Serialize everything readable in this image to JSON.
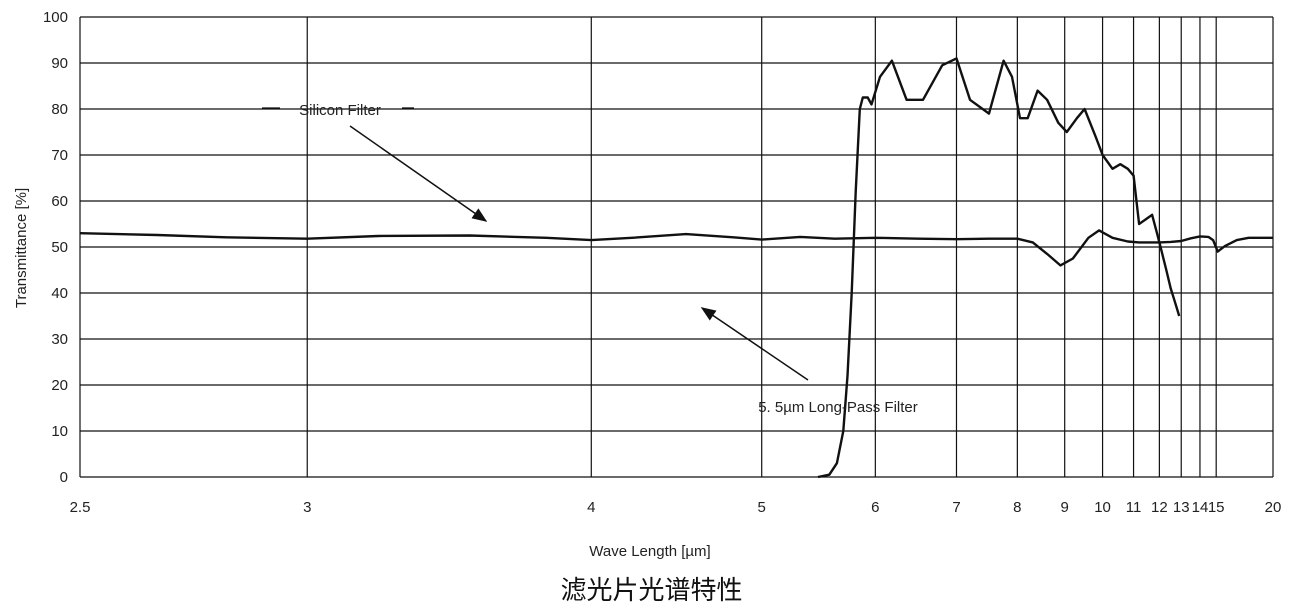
{
  "chart_data": {
    "type": "line",
    "title": "",
    "xlabel": "Wave Length [µm]",
    "ylabel": "Transmittance [%]",
    "xscale": "reciprocal",
    "xlim": [
      2.5,
      20
    ],
    "ylim": [
      0,
      100
    ],
    "grid": true,
    "x_ticks": [
      2.5,
      3,
      4,
      5,
      6,
      7,
      8,
      9,
      10,
      11,
      12,
      13,
      14,
      15,
      20
    ],
    "x_tick_labels": [
      "2.5",
      "3",
      "4",
      "5",
      "6",
      "7",
      "8",
      "9",
      "10",
      "11",
      "12",
      "13",
      "14",
      "15",
      "20"
    ],
    "y_ticks": [
      0,
      10,
      20,
      30,
      40,
      50,
      60,
      70,
      80,
      90,
      100
    ],
    "y_tick_labels": [
      "0",
      "10",
      "20",
      "30",
      "40",
      "50",
      "60",
      "70",
      "80",
      "90",
      "100"
    ],
    "series": [
      {
        "name": "Silicon Filter",
        "x": [
          2.5,
          2.65,
          2.8,
          3.0,
          3.2,
          3.5,
          3.8,
          4.0,
          4.2,
          4.5,
          4.8,
          5.0,
          5.3,
          5.6,
          6.0,
          6.5,
          7.0,
          7.5,
          8.0,
          8.3,
          8.6,
          8.9,
          9.2,
          9.6,
          9.9,
          10.3,
          10.8,
          11.2,
          11.6,
          12.0,
          12.5,
          13.0,
          13.5,
          14.0,
          14.5,
          14.8,
          15.1,
          15.6,
          16.5,
          17.5,
          18.5,
          20.0
        ],
        "y": [
          53,
          52.6,
          52.1,
          51.8,
          52.4,
          52.5,
          52.0,
          51.5,
          52.0,
          52.8,
          52.1,
          51.6,
          52.2,
          51.8,
          52.0,
          51.8,
          51.7,
          51.8,
          51.8,
          51.0,
          48.5,
          46.0,
          47.5,
          52.0,
          53.6,
          52.0,
          51.2,
          51.0,
          51.0,
          51.0,
          51.1,
          51.3,
          51.9,
          52.3,
          52.2,
          51.5,
          49.0,
          50.2,
          51.5,
          52.0,
          52.0,
          52.0
        ]
      },
      {
        "name": "5. 5µm Long-Pass Filter",
        "x": [
          5.45,
          5.55,
          5.62,
          5.68,
          5.72,
          5.76,
          5.8,
          5.84,
          5.87,
          5.92,
          5.96,
          6.05,
          6.18,
          6.35,
          6.55,
          6.8,
          7.0,
          7.2,
          7.5,
          7.75,
          7.9,
          8.05,
          8.2,
          8.4,
          8.6,
          8.85,
          9.05,
          9.3,
          9.5,
          9.8,
          10.0,
          10.3,
          10.55,
          10.8,
          11.0,
          11.2,
          11.45,
          11.7,
          11.9,
          12.1,
          12.3,
          12.5,
          12.7,
          12.9
        ],
        "y": [
          0,
          0.5,
          3,
          10,
          22,
          40,
          62,
          80,
          82.5,
          82.5,
          81,
          87,
          90.5,
          82,
          82,
          89.5,
          91,
          82,
          79,
          90.5,
          87,
          78,
          78,
          84,
          82,
          77,
          75,
          78,
          80,
          74,
          70,
          67,
          68,
          67,
          65.5,
          55,
          56,
          57,
          53,
          49,
          45,
          41,
          38,
          35
        ]
      }
    ],
    "annotations": [
      {
        "text": "Silicon Filter",
        "points_to": "Silicon Filter"
      },
      {
        "text": "5. 5µm Long-Pass Filter",
        "points_to": "5. 5µm Long-Pass Filter"
      }
    ]
  },
  "caption": "滤光片光谱特性"
}
